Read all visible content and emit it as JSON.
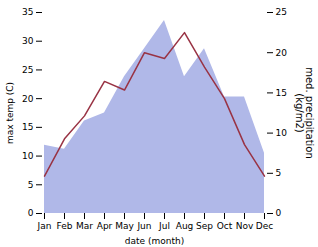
{
  "chart_data": {
    "type": "line",
    "xlabel": "date (month)",
    "ylabel": "max temp (C)",
    "y2label": "med. precipitation\n(kg/m2)",
    "categories": [
      "Jan",
      "Feb",
      "Mar",
      "Apr",
      "May",
      "Jun",
      "Jul",
      "Aug",
      "Sep",
      "Oct",
      "Nov",
      "Dec"
    ],
    "series": [
      {
        "name": "med. precipitation\n(kg/m2)",
        "type": "area",
        "axis": "y2",
        "color": "#b0b8e8",
        "values": [
          8.5,
          8.0,
          11.5,
          12.5,
          17.0,
          20.5,
          24.0,
          17.0,
          20.5,
          14.5,
          14.5,
          7.5
        ]
      },
      {
        "name": "max temp (C)",
        "type": "line",
        "color": "#993344",
        "values": [
          6.5,
          13.0,
          17.0,
          23.0,
          21.5,
          28.0,
          27.0,
          31.5,
          25.5,
          20.0,
          12.0,
          6.5
        ]
      }
    ],
    "ylim": [
      0,
      35
    ],
    "yticks": [
      0,
      5,
      10,
      15,
      20,
      25,
      30,
      35
    ],
    "y2lim": [
      0,
      25
    ],
    "y2ticks": [
      0,
      5,
      10,
      15,
      20,
      25
    ],
    "grid": false
  }
}
